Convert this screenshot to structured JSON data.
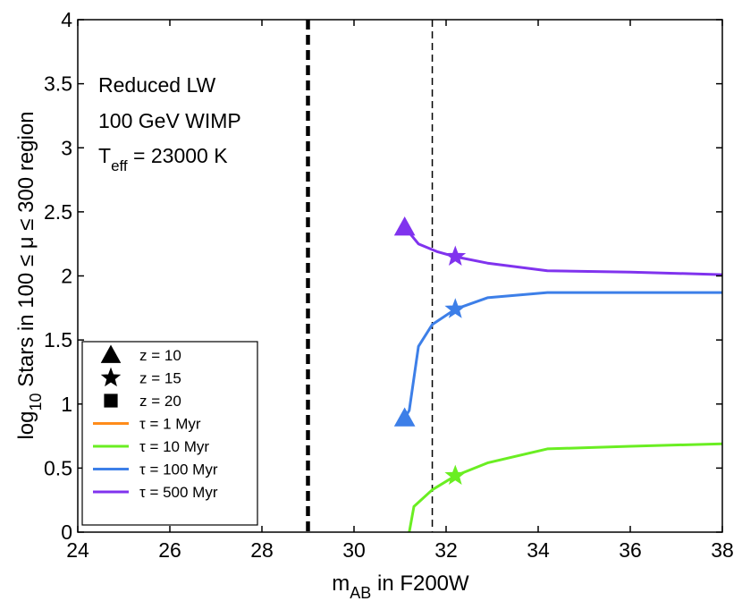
{
  "chart_data": {
    "type": "line",
    "xlabel": {
      "main": "m",
      "sub": "AB",
      "rest": " in F200W"
    },
    "ylabel": {
      "main": "log",
      "sub": "10",
      "rest": " Stars in 100 ≤ μ ≤ 300 region"
    },
    "xlim": [
      24,
      38
    ],
    "ylim": [
      0,
      4
    ],
    "xticks": [
      24,
      26,
      28,
      30,
      32,
      34,
      36,
      38
    ],
    "yticks": [
      0,
      0.5,
      1,
      1.5,
      2,
      2.5,
      3,
      3.5,
      4
    ],
    "ytick_labels": [
      "0",
      "0.5",
      "1",
      "1.5",
      "2",
      "2.5",
      "3",
      "3.5",
      "4"
    ],
    "grid": false,
    "annotations": {
      "line1": "Reduced LW",
      "line2": "100 GeV WIMP",
      "teff_main": "T",
      "teff_sub": "eff",
      "teff_rest": " = 23000 K"
    },
    "vlines": [
      {
        "x": 29.0,
        "style": "thick-dashed",
        "color": "#000000"
      },
      {
        "x": 31.7,
        "style": "thin-dashed",
        "color": "#000000"
      }
    ],
    "series": [
      {
        "name": "τ = 500 Myr",
        "color": "#8033ee",
        "x": [
          31.1,
          31.4,
          31.8,
          32.2,
          32.9,
          34.2,
          36.0,
          38.0
        ],
        "y": [
          2.38,
          2.25,
          2.19,
          2.15,
          2.1,
          2.04,
          2.03,
          2.01
        ],
        "markers": [
          {
            "shape": "triangle",
            "x": 31.1,
            "y": 2.38
          },
          {
            "shape": "star",
            "x": 32.2,
            "y": 2.15
          }
        ]
      },
      {
        "name": "τ = 100 Myr",
        "color": "#3d7fe8",
        "x": [
          31.1,
          31.2,
          31.4,
          31.7,
          32.2,
          32.9,
          34.2,
          36.0,
          38.0
        ],
        "y": [
          0.89,
          0.95,
          1.45,
          1.62,
          1.74,
          1.83,
          1.87,
          1.87,
          1.87
        ],
        "markers": [
          {
            "shape": "triangle",
            "x": 31.1,
            "y": 0.89
          },
          {
            "shape": "star",
            "x": 32.2,
            "y": 1.74
          }
        ]
      },
      {
        "name": "τ = 10 Myr",
        "color": "#6aee22",
        "x": [
          31.2,
          31.3,
          31.7,
          32.2,
          32.9,
          34.2,
          36.0,
          38.0
        ],
        "y": [
          0.0,
          0.2,
          0.33,
          0.44,
          0.54,
          0.65,
          0.67,
          0.69
        ],
        "markers": [
          {
            "shape": "star",
            "x": 32.2,
            "y": 0.44
          }
        ]
      }
    ],
    "legend": {
      "placement": "bottom-left",
      "entries": [
        {
          "kind": "marker",
          "shape": "triangle",
          "label": "z = 10"
        },
        {
          "kind": "marker",
          "shape": "star",
          "label": "z = 15"
        },
        {
          "kind": "marker",
          "shape": "square",
          "label": "z = 20"
        },
        {
          "kind": "line",
          "color": "#ff8c1a",
          "label": "τ = 1 Myr"
        },
        {
          "kind": "line",
          "color": "#6aee22",
          "label": "τ = 10 Myr"
        },
        {
          "kind": "line",
          "color": "#3d7fe8",
          "label": "τ = 100 Myr"
        },
        {
          "kind": "line",
          "color": "#8033ee",
          "label": "τ = 500 Myr"
        }
      ]
    }
  }
}
